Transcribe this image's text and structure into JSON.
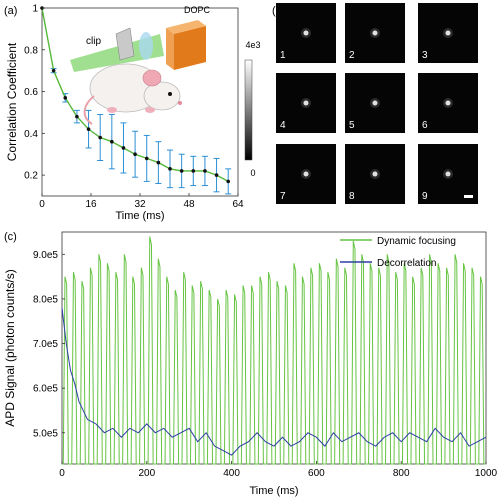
{
  "panel_labels": {
    "a": "(a)",
    "b": "(b)",
    "c": "(c)"
  },
  "chart_data": [
    {
      "panel": "(a)",
      "type": "line",
      "xlabel": "Time (ms)",
      "ylabel": "Correlation Coefficient",
      "xlim": [
        0,
        64
      ],
      "ylim": [
        0.1,
        1.0
      ],
      "xticks": [
        "0",
        "16",
        "32",
        "48",
        "64"
      ],
      "yticks": [
        "0.2",
        "0.4",
        "0.6",
        "0.8",
        "1"
      ],
      "colors": {
        "line": "#55b83a",
        "marker": "#111111",
        "error": "#2b8fd6"
      },
      "x": [
        0,
        3.8,
        7.6,
        11.4,
        15.2,
        19,
        22.8,
        26.6,
        30.4,
        34.2,
        38,
        41.8,
        45.6,
        49.4,
        53.2,
        57,
        60.8
      ],
      "y": [
        1.0,
        0.7,
        0.57,
        0.48,
        0.42,
        0.38,
        0.36,
        0.33,
        0.3,
        0.28,
        0.26,
        0.23,
        0.22,
        0.22,
        0.22,
        0.2,
        0.17
      ],
      "err": [
        0,
        0.01,
        0.02,
        0.03,
        0.09,
        0.11,
        0.13,
        0.12,
        0.11,
        0.11,
        0.1,
        0.09,
        0.08,
        0.07,
        0.07,
        0.08,
        0.06
      ],
      "annotations": {
        "clip": "clip",
        "dopc": "DOPC"
      },
      "colorbar": {
        "max_label": "4e3",
        "min_label": "0"
      }
    },
    {
      "panel": "(b)",
      "type": "image-grid",
      "tiles": [
        "1",
        "2",
        "3",
        "4",
        "5",
        "6",
        "7",
        "8",
        "9"
      ]
    },
    {
      "panel": "(c)",
      "type": "line",
      "xlabel": "Time (ms)",
      "ylabel": "APD Signal (photon counts/s)",
      "xlim": [
        0,
        1000
      ],
      "ylim": [
        430000,
        950000
      ],
      "xticks": [
        "0",
        "200",
        "400",
        "600",
        "800",
        "1000"
      ],
      "yticks": [
        "5.0e5",
        "6.0e5",
        "7.0e5",
        "8.0e5",
        "9.0e5"
      ],
      "legend_position": "top-right",
      "colors": {
        "dynamic": "#66c443",
        "decorrelation": "#2d3fa6"
      },
      "series": [
        {
          "name": "Dynamic focusing",
          "pulse_period_ms": 20,
          "baseline": 430000,
          "peaks": [
            850000,
            860000,
            840000,
            870000,
            900000,
            880000,
            860000,
            900000,
            850000,
            870000,
            940000,
            890000,
            850000,
            820000,
            860000,
            830000,
            840000,
            820000,
            800000,
            820000,
            810000,
            830000,
            830000,
            850000,
            860000,
            840000,
            830000,
            880000,
            850000,
            870000,
            880000,
            860000,
            890000,
            870000,
            930000,
            900000,
            880000,
            870000,
            900000,
            860000,
            880000,
            850000,
            870000,
            900000,
            880000,
            870000,
            900000,
            880000,
            870000,
            850000
          ]
        },
        {
          "name": "Decorrelation",
          "x": [
            0,
            10,
            20,
            30,
            40,
            50,
            60,
            80,
            100,
            120,
            140,
            160,
            180,
            200,
            220,
            240,
            260,
            280,
            300,
            320,
            340,
            360,
            380,
            400,
            420,
            440,
            460,
            480,
            500,
            520,
            540,
            560,
            580,
            600,
            620,
            640,
            660,
            680,
            700,
            720,
            740,
            760,
            780,
            800,
            820,
            840,
            860,
            880,
            900,
            920,
            940,
            960,
            980,
            1000
          ],
          "y": [
            780000,
            700000,
            640000,
            610000,
            570000,
            550000,
            530000,
            520000,
            500000,
            510000,
            490000,
            510000,
            500000,
            520000,
            500000,
            510000,
            490000,
            500000,
            510000,
            480000,
            500000,
            470000,
            460000,
            450000,
            470000,
            480000,
            500000,
            480000,
            470000,
            490000,
            470000,
            480000,
            500000,
            490000,
            470000,
            500000,
            480000,
            490000,
            500000,
            480000,
            470000,
            490000,
            500000,
            480000,
            500000,
            490000,
            480000,
            510000,
            490000,
            480000,
            500000,
            470000,
            480000,
            490000
          ]
        }
      ]
    }
  ]
}
